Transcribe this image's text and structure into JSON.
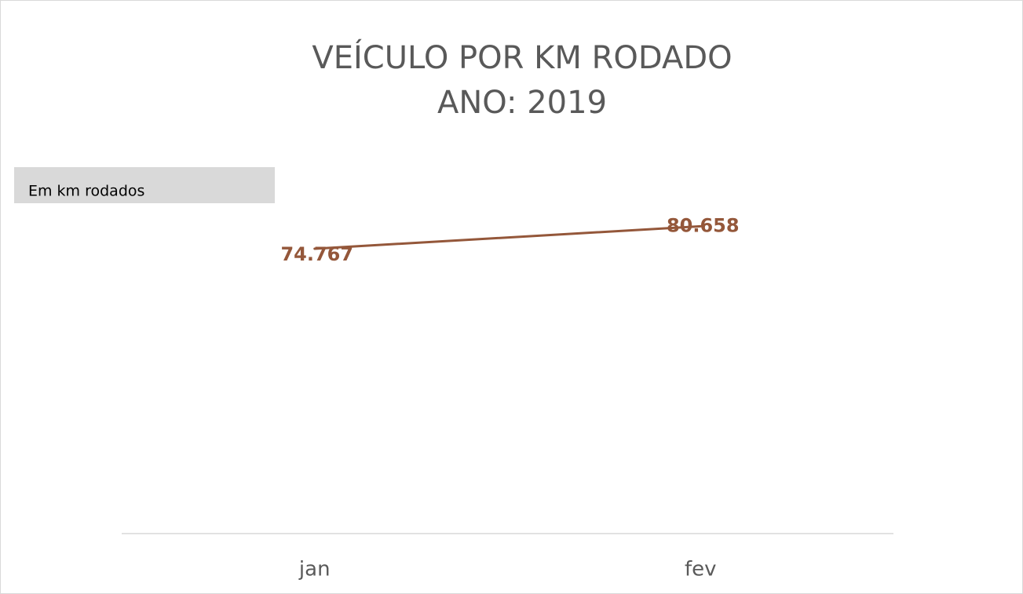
{
  "chart_data": {
    "type": "line",
    "title": [
      "VEÍCULO POR KM RODADO",
      "ANO: 2019"
    ],
    "annotation": "Em km rodados",
    "categories": [
      "jan",
      "fev"
    ],
    "values": [
      74767,
      80658
    ],
    "value_labels": [
      "74.767",
      "80.658"
    ],
    "color": "#94573a",
    "ylim": [
      0,
      90000
    ]
  }
}
